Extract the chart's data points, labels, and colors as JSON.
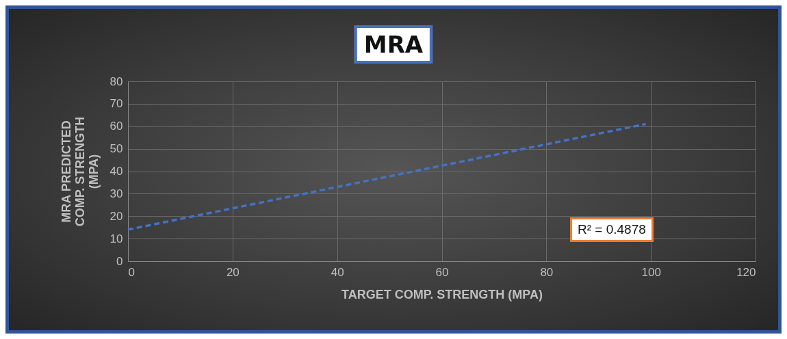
{
  "chart_data": {
    "type": "line",
    "title": "MRA",
    "xlabel": "TARGET COMP. STRENGTH (MPA)",
    "ylabel": "MRA PREDICTED COMP. STRENGTH (MPA)",
    "x": [
      0,
      99
    ],
    "series": [
      {
        "color": "#4472c4",
        "values": [
          14,
          61
        ]
      }
    ],
    "xlim": [
      0,
      120
    ],
    "xticks": [
      0,
      20,
      40,
      60,
      80,
      100,
      120
    ],
    "ylim": [
      0,
      80
    ],
    "yticks": [
      0,
      10,
      20,
      30,
      40,
      50,
      60,
      70,
      80
    ],
    "grid": true,
    "line_style": "dashed",
    "marker": "none",
    "annotations": [
      "R² = 0.4878"
    ]
  }
}
